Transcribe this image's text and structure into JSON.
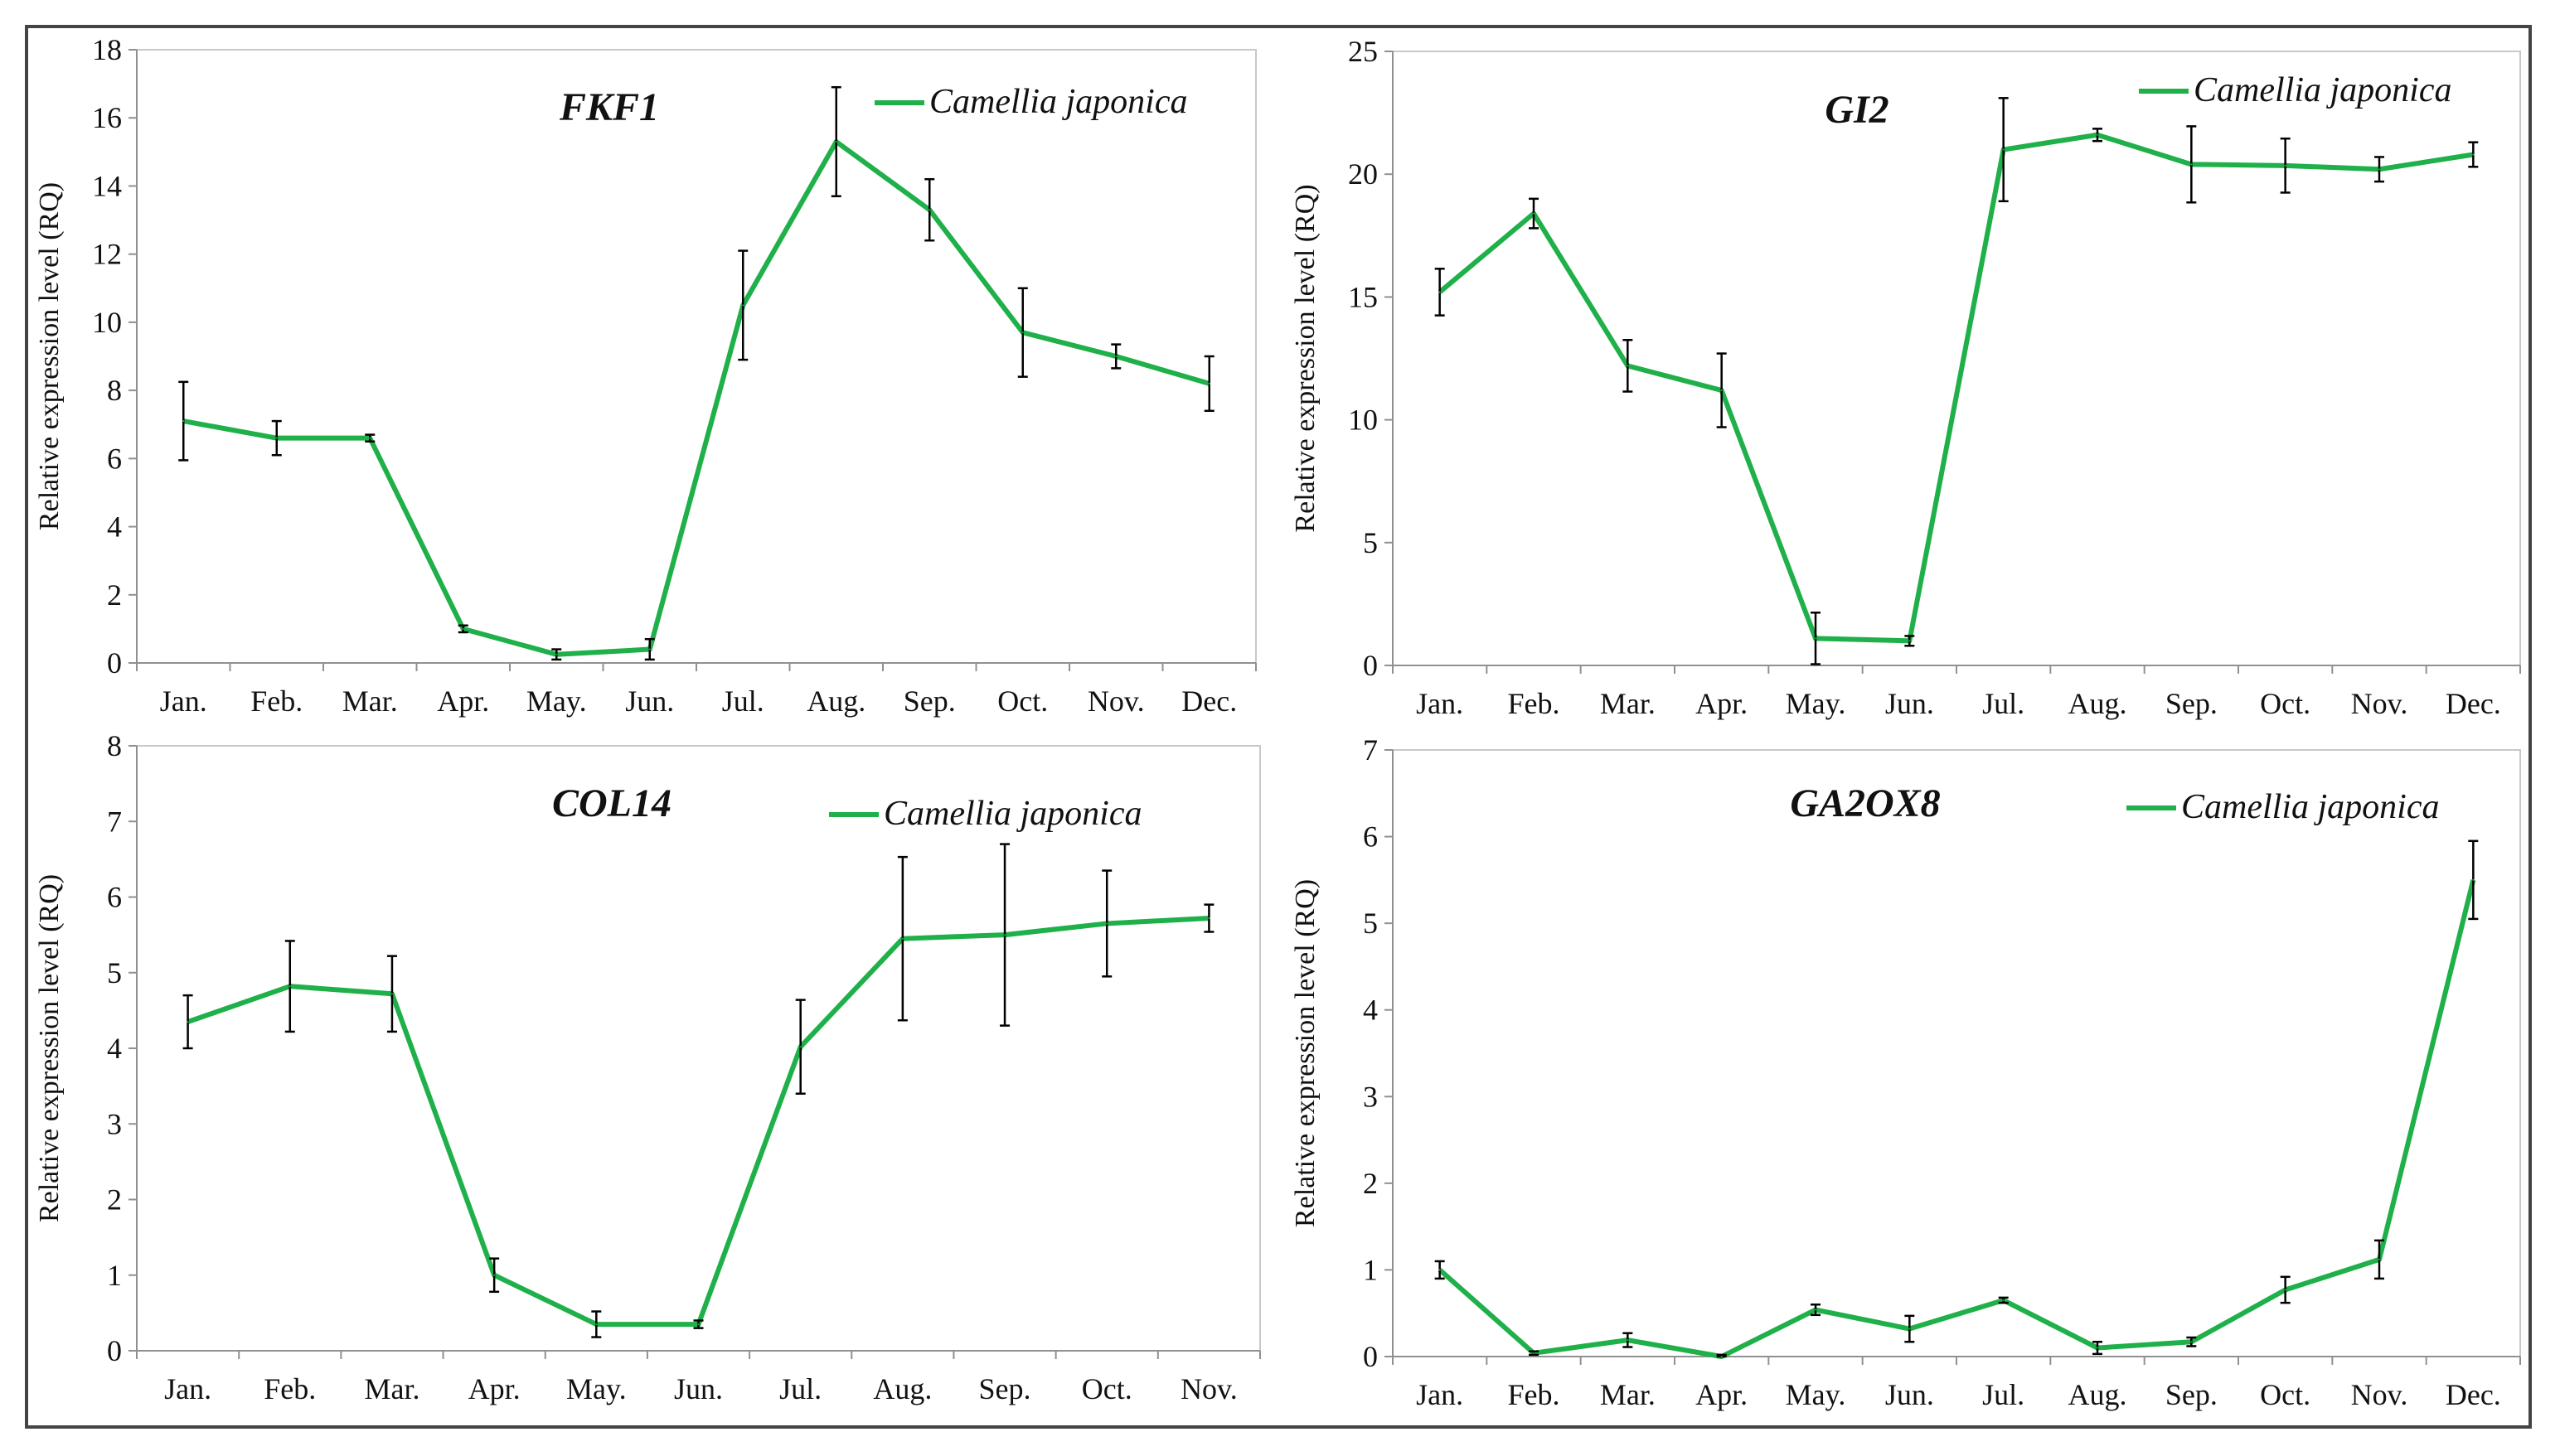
{
  "colors": {
    "line": "#1FB04A",
    "error": "#000000",
    "frame": "#444444"
  },
  "chart_data": [
    {
      "type": "line",
      "title": "FKF1",
      "ylabel": "Relative expression level (RQ)",
      "xlabel": "",
      "legend": "Camellia japonica",
      "categories": [
        "Jan.",
        "Feb.",
        "Mar.",
        "Apr.",
        "May.",
        "Jun.",
        "Jul.",
        "Aug.",
        "Sep.",
        "Oct.",
        "Nov.",
        "Dec."
      ],
      "values": [
        7.1,
        6.6,
        6.6,
        1.0,
        0.25,
        0.4,
        10.5,
        15.3,
        13.3,
        9.7,
        9.0,
        8.2
      ],
      "errors": [
        1.15,
        0.5,
        0.1,
        0.1,
        0.15,
        0.3,
        1.6,
        1.6,
        0.9,
        1.3,
        0.35,
        0.8
      ],
      "ylim": [
        0,
        18
      ],
      "yticks": [
        "0",
        "2",
        "4",
        "6",
        "8",
        "10",
        "12",
        "14",
        "16",
        "18"
      ]
    },
    {
      "type": "line",
      "title": "GI2",
      "ylabel": "Relative expression level (RQ)",
      "xlabel": "",
      "legend": "Camellia japonica",
      "categories": [
        "Jan.",
        "Feb.",
        "Mar.",
        "Apr.",
        "May.",
        "Jun.",
        "Jul.",
        "Aug.",
        "Sep.",
        "Oct.",
        "Nov.",
        "Dec."
      ],
      "values": [
        15.2,
        18.4,
        12.2,
        11.2,
        1.1,
        1.0,
        21.0,
        21.6,
        20.4,
        20.35,
        20.2,
        20.8
      ],
      "errors": [
        0.95,
        0.6,
        1.05,
        1.5,
        1.05,
        0.2,
        2.1,
        0.25,
        1.55,
        1.1,
        0.5,
        0.5
      ],
      "ylim": [
        0,
        25
      ],
      "yticks": [
        "0",
        "5",
        "10",
        "15",
        "20",
        "25"
      ]
    },
    {
      "type": "line",
      "title": "COL14",
      "ylabel": "Relative expression level (RQ)",
      "xlabel": "",
      "legend": "Camellia japonica",
      "categories": [
        "Jan.",
        "Feb.",
        "Mar.",
        "Apr.",
        "May.",
        "Jun.",
        "Jul.",
        "Aug.",
        "Sep.",
        "Oct.",
        "Nov."
      ],
      "values": [
        4.35,
        4.82,
        4.72,
        1.0,
        0.35,
        0.35,
        4.02,
        5.45,
        5.5,
        5.65,
        5.72
      ],
      "errors": [
        0.35,
        0.6,
        0.5,
        0.22,
        0.17,
        0.05,
        0.62,
        1.08,
        1.2,
        0.7,
        0.18
      ],
      "ylim": [
        0,
        8
      ],
      "yticks": [
        "0",
        "1",
        "2",
        "3",
        "4",
        "5",
        "6",
        "7",
        "8"
      ]
    },
    {
      "type": "line",
      "title": "GA2OX8",
      "ylabel": "Relative expression level (RQ)",
      "xlabel": "",
      "legend": "Camellia japonica",
      "categories": [
        "Jan.",
        "Feb.",
        "Mar.",
        "Apr.",
        "May.",
        "Jun.",
        "Jul.",
        "Aug.",
        "Sep.",
        "Oct.",
        "Nov.",
        "Dec."
      ],
      "values": [
        1.0,
        0.04,
        0.19,
        0.0,
        0.54,
        0.32,
        0.65,
        0.1,
        0.17,
        0.77,
        1.12,
        5.5
      ],
      "errors": [
        0.1,
        0.02,
        0.08,
        0.02,
        0.06,
        0.15,
        0.03,
        0.07,
        0.05,
        0.15,
        0.22,
        0.45
      ],
      "ylim": [
        0,
        7
      ],
      "yticks": [
        "0",
        "1",
        "2",
        "3",
        "4",
        "5",
        "6",
        "7"
      ]
    }
  ]
}
